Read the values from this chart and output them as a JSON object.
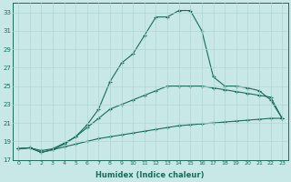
{
  "xlabel": "Humidex (Indice chaleur)",
  "xlim": [
    -0.5,
    23.5
  ],
  "ylim": [
    17,
    34
  ],
  "yticks": [
    17,
    19,
    21,
    23,
    25,
    27,
    29,
    31,
    33
  ],
  "xticks": [
    0,
    1,
    2,
    3,
    4,
    5,
    6,
    7,
    8,
    9,
    10,
    11,
    12,
    13,
    14,
    15,
    16,
    17,
    18,
    19,
    20,
    21,
    22,
    23
  ],
  "background_color": "#c8e8e8",
  "grid_color": "#b0d4d4",
  "line_color": "#1a6b5a",
  "line1_x": [
    0,
    1,
    2,
    3,
    4,
    5,
    6,
    7,
    8,
    9,
    10,
    11,
    12,
    13,
    14,
    15,
    16,
    17,
    18,
    19,
    20,
    21,
    22,
    23
  ],
  "line1_y": [
    18.2,
    18.3,
    17.8,
    18.1,
    18.7,
    19.5,
    20.8,
    22.5,
    25.5,
    27.5,
    28.5,
    30.5,
    32.5,
    32.5,
    33.2,
    33.2,
    31.0,
    26.0,
    25.0,
    25.0,
    24.8,
    24.5,
    23.5,
    21.5
  ],
  "line2_x": [
    0,
    1,
    2,
    3,
    4,
    5,
    6,
    7,
    8,
    9,
    10,
    11,
    12,
    13,
    14,
    15,
    16,
    17,
    18,
    19,
    20,
    21,
    22,
    23
  ],
  "line2_y": [
    18.2,
    18.3,
    18.0,
    18.2,
    18.8,
    19.5,
    20.5,
    21.5,
    22.5,
    23.0,
    23.5,
    24.0,
    24.5,
    25.0,
    25.0,
    25.0,
    25.0,
    24.8,
    24.6,
    24.4,
    24.2,
    24.0,
    23.8,
    21.5
  ],
  "line3_x": [
    0,
    1,
    2,
    3,
    4,
    5,
    6,
    7,
    8,
    9,
    10,
    11,
    12,
    13,
    14,
    15,
    16,
    17,
    18,
    19,
    20,
    21,
    22,
    23
  ],
  "line3_y": [
    18.2,
    18.3,
    17.8,
    18.1,
    18.4,
    18.7,
    19.0,
    19.3,
    19.5,
    19.7,
    19.9,
    20.1,
    20.3,
    20.5,
    20.7,
    20.8,
    20.9,
    21.0,
    21.1,
    21.2,
    21.3,
    21.4,
    21.5,
    21.5
  ]
}
